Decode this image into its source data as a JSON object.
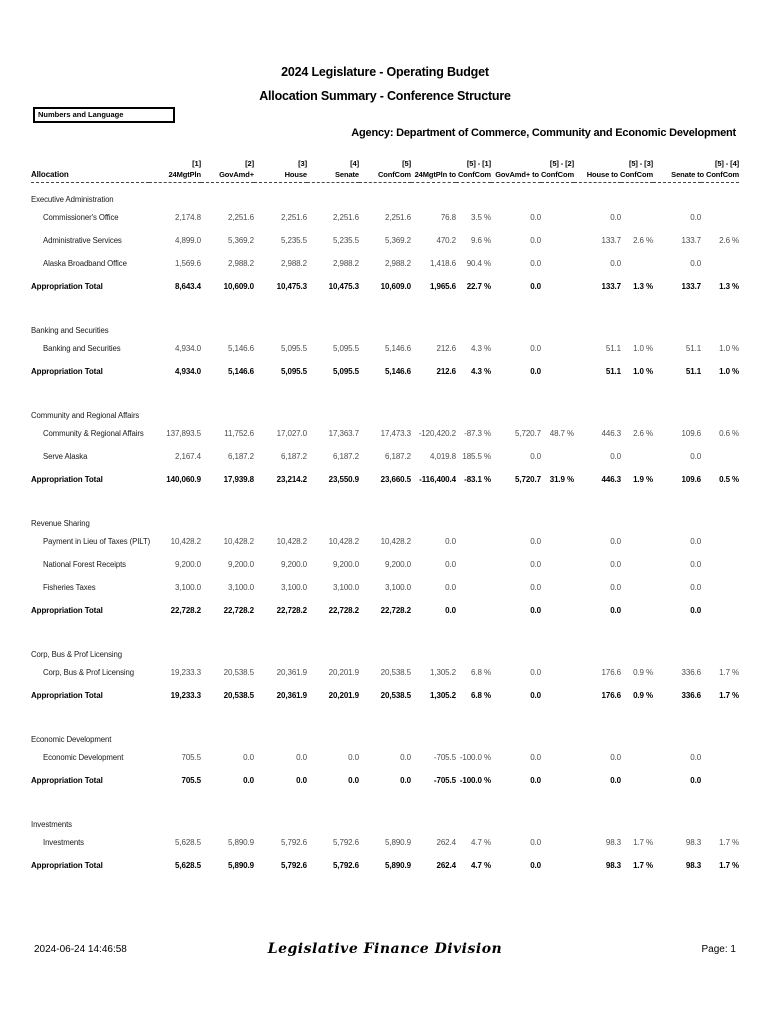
{
  "page": {
    "title_line1": "2024 Legislature - Operating Budget",
    "title_line2": "Allocation Summary - Conference Structure",
    "filter_box_label": "Numbers and Language",
    "agency_line": "Agency: Department of Commerce, Community and Economic Development",
    "footer": {
      "timestamp": "2024-06-24 14:46:58",
      "division": "Legislative Finance Division",
      "page_label": "Page: 1"
    }
  },
  "table": {
    "allocation_header": "Allocation",
    "total_label": "Appropriation Total",
    "columns": [
      {
        "num": "[1]",
        "label": "24MgtPln"
      },
      {
        "num": "[2]",
        "label": "GovAmd+"
      },
      {
        "num": "[3]",
        "label": "House"
      },
      {
        "num": "[4]",
        "label": "Senate"
      },
      {
        "num": "[5]",
        "label": "ConfCom"
      }
    ],
    "diff_columns": [
      {
        "num": "[5] - [1]",
        "label": "24MgtPln to ConfCom"
      },
      {
        "num": "[5] - [2]",
        "label": "GovAmd+ to ConfCom"
      },
      {
        "num": "[5] - [3]",
        "label": "House to ConfCom"
      },
      {
        "num": "[5] - [4]",
        "label": "Senate to ConfCom"
      }
    ],
    "sections": [
      {
        "title": "Executive Administration",
        "rows": [
          {
            "label": "Commissioner's Office",
            "values": [
              "2,174.8",
              "2,251.6",
              "2,251.6",
              "2,251.6",
              "2,251.6"
            ],
            "diffs": [
              "76.8",
              "3.5 %",
              "0.0",
              "",
              "0.0",
              "",
              "0.0",
              ""
            ]
          },
          {
            "label": "Administrative Services",
            "values": [
              "4,899.0",
              "5,369.2",
              "5,235.5",
              "5,235.5",
              "5,369.2"
            ],
            "diffs": [
              "470.2",
              "9.6 %",
              "0.0",
              "",
              "133.7",
              "2.6 %",
              "133.7",
              "2.6 %"
            ]
          },
          {
            "label": "Alaska Broadband Office",
            "values": [
              "1,569.6",
              "2,988.2",
              "2,988.2",
              "2,988.2",
              "2,988.2"
            ],
            "diffs": [
              "1,418.6",
              "90.4 %",
              "0.0",
              "",
              "0.0",
              "",
              "0.0",
              ""
            ]
          }
        ],
        "total": {
          "values": [
            "8,643.4",
            "10,609.0",
            "10,475.3",
            "10,475.3",
            "10,609.0"
          ],
          "diffs": [
            "1,965.6",
            "22.7 %",
            "0.0",
            "",
            "133.7",
            "1.3 %",
            "133.7",
            "1.3 %"
          ]
        }
      },
      {
        "title": "Banking and Securities",
        "rows": [
          {
            "label": "Banking and Securities",
            "values": [
              "4,934.0",
              "5,146.6",
              "5,095.5",
              "5,095.5",
              "5,146.6"
            ],
            "diffs": [
              "212.6",
              "4.3 %",
              "0.0",
              "",
              "51.1",
              "1.0 %",
              "51.1",
              "1.0 %"
            ]
          }
        ],
        "total": {
          "values": [
            "4,934.0",
            "5,146.6",
            "5,095.5",
            "5,095.5",
            "5,146.6"
          ],
          "diffs": [
            "212.6",
            "4.3 %",
            "0.0",
            "",
            "51.1",
            "1.0 %",
            "51.1",
            "1.0 %"
          ]
        }
      },
      {
        "title": "Community and Regional Affairs",
        "rows": [
          {
            "label": "Community & Regional Affairs",
            "values": [
              "137,893.5",
              "11,752.6",
              "17,027.0",
              "17,363.7",
              "17,473.3"
            ],
            "diffs": [
              "-120,420.2",
              "-87.3 %",
              "5,720.7",
              "48.7 %",
              "446.3",
              "2.6 %",
              "109.6",
              "0.6 %"
            ]
          },
          {
            "label": "Serve Alaska",
            "values": [
              "2,167.4",
              "6,187.2",
              "6,187.2",
              "6,187.2",
              "6,187.2"
            ],
            "diffs": [
              "4,019.8",
              "185.5 %",
              "0.0",
              "",
              "0.0",
              "",
              "0.0",
              ""
            ]
          }
        ],
        "total": {
          "values": [
            "140,060.9",
            "17,939.8",
            "23,214.2",
            "23,550.9",
            "23,660.5"
          ],
          "diffs": [
            "-116,400.4",
            "-83.1 %",
            "5,720.7",
            "31.9 %",
            "446.3",
            "1.9 %",
            "109.6",
            "0.5 %"
          ]
        }
      },
      {
        "title": "Revenue Sharing",
        "rows": [
          {
            "label": "Payment in Lieu of Taxes (PILT)",
            "values": [
              "10,428.2",
              "10,428.2",
              "10,428.2",
              "10,428.2",
              "10,428.2"
            ],
            "diffs": [
              "0.0",
              "",
              "0.0",
              "",
              "0.0",
              "",
              "0.0",
              ""
            ]
          },
          {
            "label": "National Forest Receipts",
            "values": [
              "9,200.0",
              "9,200.0",
              "9,200.0",
              "9,200.0",
              "9,200.0"
            ],
            "diffs": [
              "0.0",
              "",
              "0.0",
              "",
              "0.0",
              "",
              "0.0",
              ""
            ]
          },
          {
            "label": "Fisheries Taxes",
            "values": [
              "3,100.0",
              "3,100.0",
              "3,100.0",
              "3,100.0",
              "3,100.0"
            ],
            "diffs": [
              "0.0",
              "",
              "0.0",
              "",
              "0.0",
              "",
              "0.0",
              ""
            ]
          }
        ],
        "total": {
          "values": [
            "22,728.2",
            "22,728.2",
            "22,728.2",
            "22,728.2",
            "22,728.2"
          ],
          "diffs": [
            "0.0",
            "",
            "0.0",
            "",
            "0.0",
            "",
            "0.0",
            ""
          ]
        }
      },
      {
        "title": "Corp, Bus & Prof Licensing",
        "rows": [
          {
            "label": "Corp, Bus & Prof Licensing",
            "values": [
              "19,233.3",
              "20,538.5",
              "20,361.9",
              "20,201.9",
              "20,538.5"
            ],
            "diffs": [
              "1,305.2",
              "6.8 %",
              "0.0",
              "",
              "176.6",
              "0.9 %",
              "336.6",
              "1.7 %"
            ]
          }
        ],
        "total": {
          "values": [
            "19,233.3",
            "20,538.5",
            "20,361.9",
            "20,201.9",
            "20,538.5"
          ],
          "diffs": [
            "1,305.2",
            "6.8 %",
            "0.0",
            "",
            "176.6",
            "0.9 %",
            "336.6",
            "1.7 %"
          ]
        }
      },
      {
        "title": "Economic Development",
        "rows": [
          {
            "label": "Economic Development",
            "values": [
              "705.5",
              "0.0",
              "0.0",
              "0.0",
              "0.0"
            ],
            "diffs": [
              "-705.5",
              "-100.0 %",
              "0.0",
              "",
              "0.0",
              "",
              "0.0",
              ""
            ]
          }
        ],
        "total": {
          "values": [
            "705.5",
            "0.0",
            "0.0",
            "0.0",
            "0.0"
          ],
          "diffs": [
            "-705.5",
            "-100.0 %",
            "0.0",
            "",
            "0.0",
            "",
            "0.0",
            ""
          ]
        }
      },
      {
        "title": "Investments",
        "rows": [
          {
            "label": "Investments",
            "values": [
              "5,628.5",
              "5,890.9",
              "5,792.6",
              "5,792.6",
              "5,890.9"
            ],
            "diffs": [
              "262.4",
              "4.7 %",
              "0.0",
              "",
              "98.3",
              "1.7 %",
              "98.3",
              "1.7 %"
            ]
          }
        ],
        "total": {
          "values": [
            "5,628.5",
            "5,890.9",
            "5,792.6",
            "5,792.6",
            "5,890.9"
          ],
          "diffs": [
            "262.4",
            "4.7 %",
            "0.0",
            "",
            "98.3",
            "1.7 %",
            "98.3",
            "1.7 %"
          ]
        }
      }
    ]
  }
}
